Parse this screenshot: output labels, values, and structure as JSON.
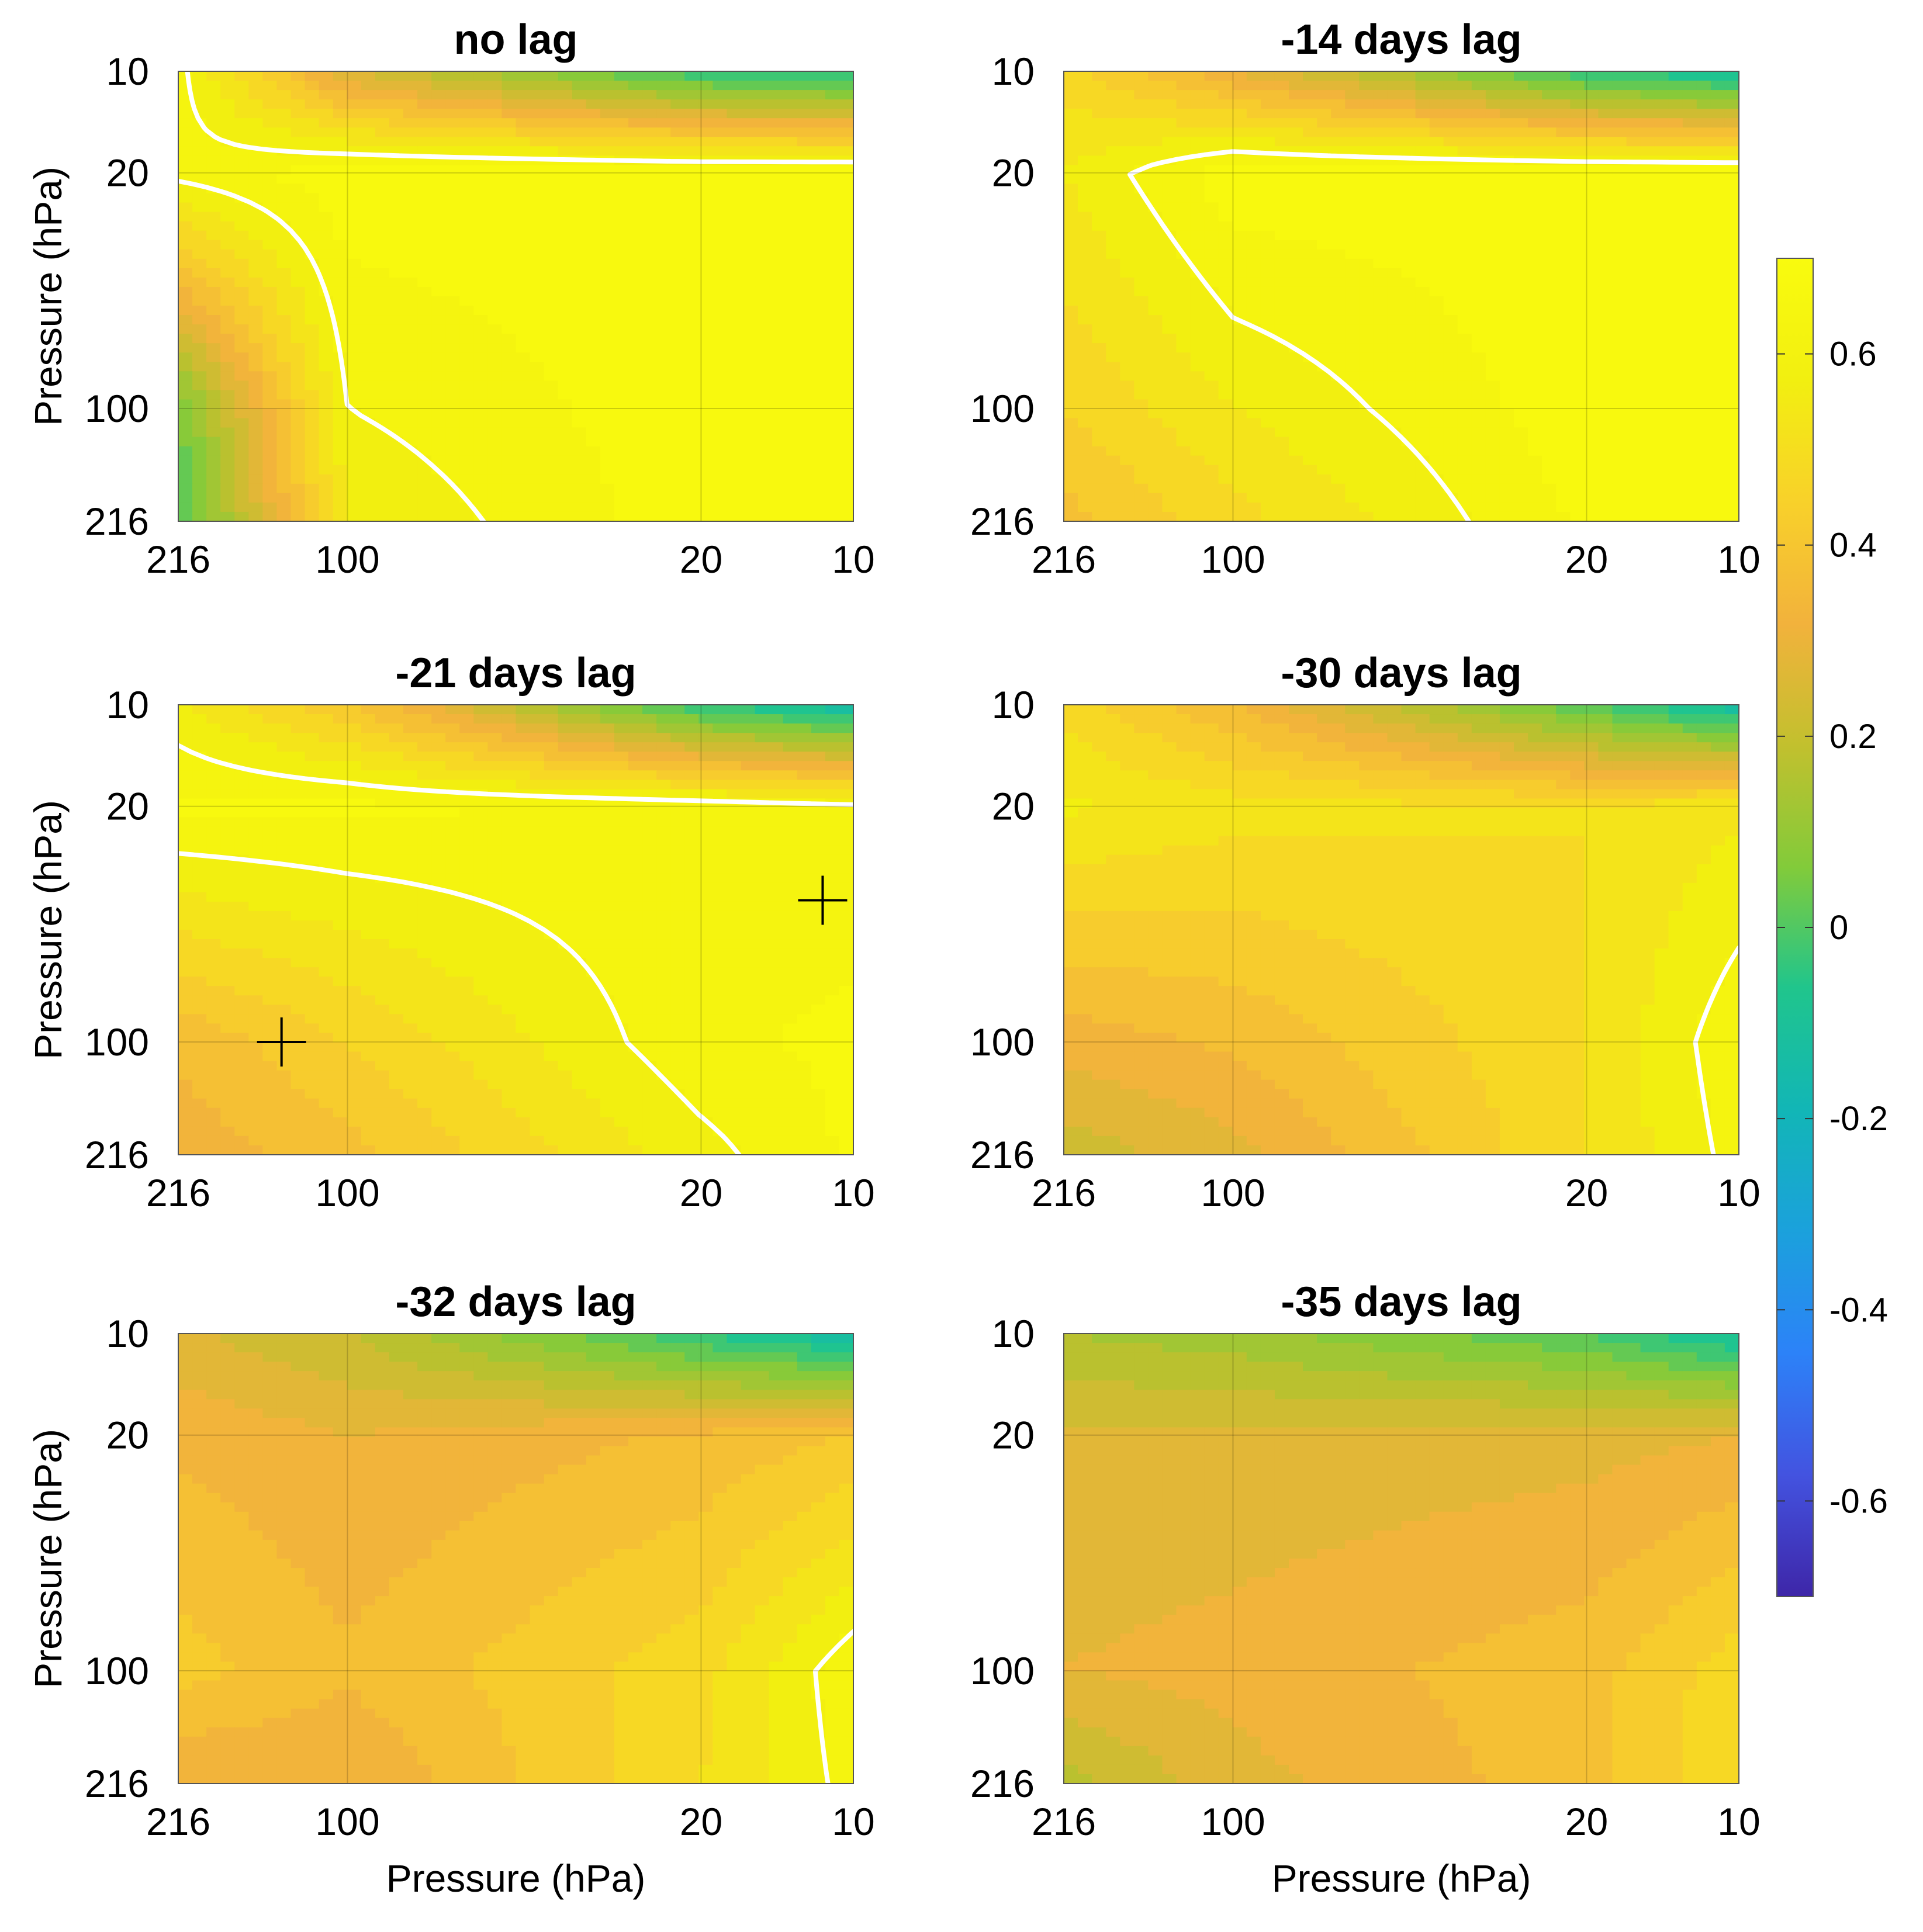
{
  "chart_data": [
    {
      "type": "heatmap",
      "title": "no lag",
      "xlabel": "",
      "ylabel": "Pressure (hPa)",
      "xticks": [
        "216",
        "100",
        "20",
        "10"
      ],
      "yticks": [
        "10",
        "20",
        "100",
        "216"
      ],
      "xlim": [
        216,
        10
      ],
      "ylim": [
        216,
        10
      ],
      "levels": {
        "pressure_hPa": [
          216,
          100,
          20,
          10
        ]
      },
      "correlation_grid": [
        [
          -0.02,
          0.55,
          0.68,
          0.68
        ],
        [
          0.05,
          0.6,
          0.68,
          0.68
        ],
        [
          0.62,
          0.68,
          0.68,
          0.68
        ],
        [
          0.62,
          0.25,
          -0.05,
          -0.08
        ]
      ],
      "significance_contour": 0.6,
      "markers": []
    },
    {
      "type": "heatmap",
      "title": "-14 days lag",
      "xlabel": "",
      "ylabel": "",
      "xticks": [
        "216",
        "100",
        "20",
        "10"
      ],
      "yticks": [
        "10",
        "20",
        "100",
        "216"
      ],
      "xlim": [
        216,
        10
      ],
      "ylim": [
        216,
        10
      ],
      "levels": {
        "pressure_hPa": [
          216,
          100,
          20,
          10
        ]
      },
      "correlation_grid": [
        [
          0.38,
          0.48,
          0.66,
          0.68
        ],
        [
          0.45,
          0.55,
          0.68,
          0.68
        ],
        [
          0.55,
          0.68,
          0.68,
          0.68
        ],
        [
          0.48,
          0.3,
          -0.05,
          -0.12
        ]
      ],
      "significance_contour": 0.6,
      "markers": []
    },
    {
      "type": "heatmap",
      "title": "-21 days lag",
      "xlabel": "",
      "ylabel": "Pressure (hPa)",
      "xticks": [
        "216",
        "100",
        "20",
        "10"
      ],
      "yticks": [
        "10",
        "20",
        "100",
        "216"
      ],
      "xlim": [
        216,
        10
      ],
      "ylim": [
        216,
        10
      ],
      "levels": {
        "pressure_hPa": [
          216,
          100,
          20,
          10
        ]
      },
      "correlation_grid": [
        [
          0.32,
          0.38,
          0.58,
          0.66
        ],
        [
          0.36,
          0.45,
          0.64,
          0.66
        ],
        [
          0.66,
          0.66,
          0.64,
          0.62
        ],
        [
          0.56,
          0.4,
          -0.05,
          -0.15
        ]
      ],
      "significance_contour": 0.6,
      "markers": [
        {
          "x_hPa": 135,
          "y_hPa": 100
        },
        {
          "x_hPa": 11.5,
          "y_hPa": 38
        }
      ]
    },
    {
      "type": "heatmap",
      "title": "-30 days lag",
      "xlabel": "",
      "ylabel": "",
      "xticks": [
        "216",
        "100",
        "20",
        "10"
      ],
      "yticks": [
        "10",
        "20",
        "100",
        "216"
      ],
      "xlim": [
        216,
        10
      ],
      "ylim": [
        216,
        10
      ],
      "levels": {
        "pressure_hPa": [
          216,
          100,
          20,
          10
        ]
      },
      "correlation_grid": [
        [
          0.22,
          0.28,
          0.5,
          0.62
        ],
        [
          0.32,
          0.36,
          0.5,
          0.64
        ],
        [
          0.56,
          0.52,
          0.5,
          0.54
        ],
        [
          0.48,
          0.35,
          0.0,
          -0.15
        ]
      ],
      "significance_contour": 0.6,
      "markers": []
    },
    {
      "type": "heatmap",
      "title": "-32 days lag",
      "xlabel": "Pressure (hPa)",
      "ylabel": "Pressure (hPa)",
      "xticks": [
        "216",
        "100",
        "20",
        "10"
      ],
      "yticks": [
        "10",
        "20",
        "100",
        "216"
      ],
      "xlim": [
        216,
        10
      ],
      "ylim": [
        216,
        10
      ],
      "levels": {
        "pressure_hPa": [
          216,
          100,
          20,
          10
        ]
      },
      "correlation_grid": [
        [
          0.3,
          0.3,
          0.5,
          0.62
        ],
        [
          0.42,
          0.36,
          0.48,
          0.64
        ],
        [
          0.34,
          0.3,
          0.36,
          0.4
        ],
        [
          0.26,
          0.2,
          -0.05,
          -0.15
        ]
      ],
      "significance_contour": 0.6,
      "markers": []
    },
    {
      "type": "heatmap",
      "title": "-35 days lag",
      "xlabel": "Pressure (hPa)",
      "ylabel": "",
      "xticks": [
        "216",
        "100",
        "20",
        "10"
      ],
      "yticks": [
        "10",
        "20",
        "100",
        "216"
      ],
      "xlim": [
        216,
        10
      ],
      "ylim": [
        216,
        10
      ],
      "levels": {
        "pressure_hPa": [
          216,
          100,
          20,
          10
        ]
      },
      "correlation_grid": [
        [
          0.18,
          0.28,
          0.38,
          0.5
        ],
        [
          0.3,
          0.32,
          0.38,
          0.48
        ],
        [
          0.26,
          0.26,
          0.28,
          0.3
        ],
        [
          0.15,
          0.12,
          0.0,
          -0.12
        ]
      ],
      "significance_contour": 0.6,
      "markers": []
    }
  ],
  "colorbar": {
    "range": [
      -0.7,
      0.7
    ],
    "ticks": [
      "0.6",
      "0.4",
      "0.2",
      "0",
      "-0.2",
      "-0.4",
      "-0.6"
    ],
    "tick_values": [
      0.6,
      0.4,
      0.2,
      0,
      -0.2,
      -0.4,
      -0.6
    ],
    "colormap": [
      "#3e26a8",
      "#4353e0",
      "#2c82f8",
      "#1ba1dc",
      "#12b6b6",
      "#20c58c",
      "#82cb3a",
      "#c2c02e",
      "#f2b23c",
      "#f8d12a",
      "#f2ef10",
      "#f9fb0e"
    ]
  }
}
